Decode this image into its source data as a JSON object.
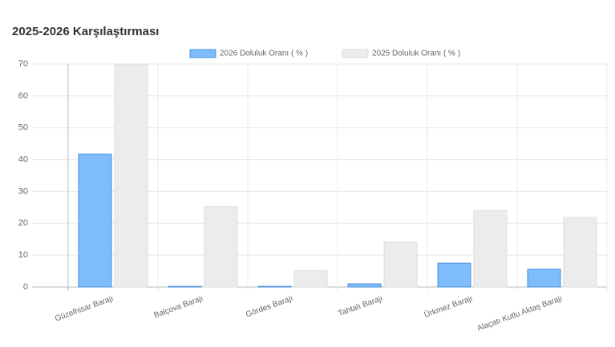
{
  "chart_data": {
    "type": "bar",
    "title": "2025-2026 Karşılaştırması",
    "categories": [
      "Güzelhisar Barajı",
      "Balçova Barajı",
      "Gördes Barajı",
      "Tahtalı Barajı",
      "Ürkmez Barajı",
      "Alaçatı Kutlu Aktaş Barajı"
    ],
    "series": [
      {
        "name": "2026 Doluluk Oranı ( % )",
        "color": "#7fbcfb",
        "border": "#4a90d9",
        "values": [
          41.7,
          0.2,
          0.2,
          1,
          7.5,
          5.6
        ]
      },
      {
        "name": "2025 Doluluk Oranı ( % )",
        "color": "#ececec",
        "border": "#dddddd",
        "values": [
          70,
          25.2,
          5.1,
          14.1,
          24,
          21.8
        ]
      }
    ],
    "ylim": [
      0,
      70
    ],
    "yticks": [
      0,
      10,
      20,
      30,
      40,
      50,
      60,
      70
    ],
    "grid": true,
    "legend": "top"
  }
}
